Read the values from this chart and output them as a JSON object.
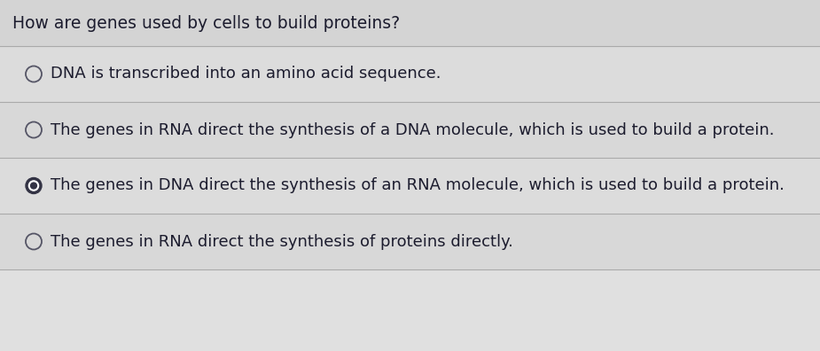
{
  "background_color": "#d4d4d4",
  "question": "How are genes used by cells to build proteins?",
  "question_color": "#1c1c2e",
  "question_fontsize": 13.5,
  "question_fontweight": "normal",
  "options": [
    {
      "text": "DNA is transcribed into an amino acid sequence.",
      "selected": false
    },
    {
      "text": "The genes in RNA direct the synthesis of a DNA molecule, which is used to build a protein.",
      "selected": false
    },
    {
      "text": "The genes in DNA direct the synthesis of an RNA molecule, which is used to build a protein.",
      "selected": true
    },
    {
      "text": "The genes in RNA direct the synthesis of proteins directly.",
      "selected": false
    }
  ],
  "option_fontsize": 13.0,
  "option_text_color": "#1c1c2e",
  "circle_stroke_color": "#555566",
  "circle_selected_outer": "#333344",
  "circle_selected_inner": "#ffffff",
  "circle_selected_dot": "#333344",
  "divider_color": "#aaaaaa",
  "divider_linewidth": 0.8,
  "option_bg_color": "#d4d4d4",
  "content_bg_color": "#e0e0e0"
}
